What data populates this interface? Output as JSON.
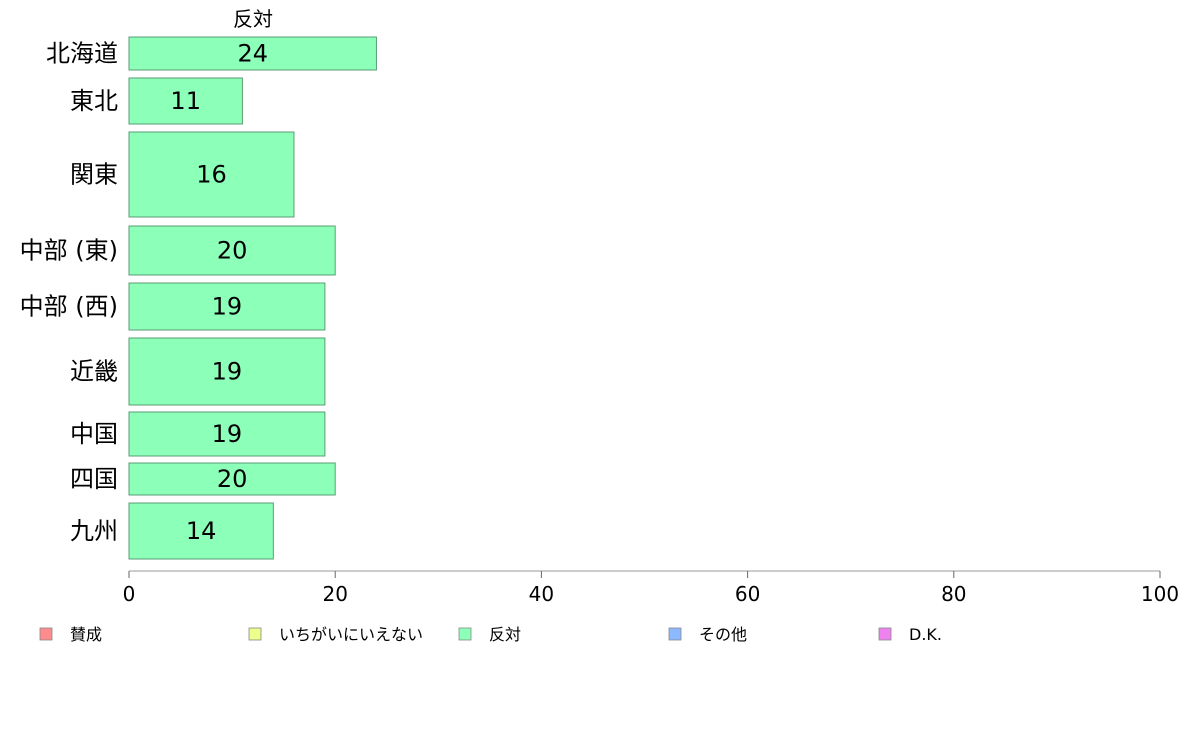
{
  "chart_data": {
    "type": "bar",
    "orientation": "horizontal",
    "series_title": "反対",
    "categories": [
      "北海道",
      "東北",
      "関東",
      "中部 (東)",
      "中部 (西)",
      "近畿",
      "中国",
      "四国",
      "九州"
    ],
    "values": [
      24,
      11,
      16,
      20,
      19,
      19,
      19,
      20,
      14
    ],
    "xlim": [
      0,
      100
    ],
    "xticks": [
      "0",
      "20",
      "40",
      "60",
      "80",
      "100"
    ],
    "bar_color": "#8cffb9",
    "bar_stroke": "#5a9e74",
    "legend": [
      {
        "label": "賛成",
        "color": "#ff8c8c"
      },
      {
        "label": "いちがいにいえない",
        "color": "#eaff8c"
      },
      {
        "label": "反対",
        "color": "#8cffb9"
      },
      {
        "label": "その他",
        "color": "#8cb9ff"
      },
      {
        "label": "D.K.",
        "color": "#ee82ee"
      }
    ]
  }
}
